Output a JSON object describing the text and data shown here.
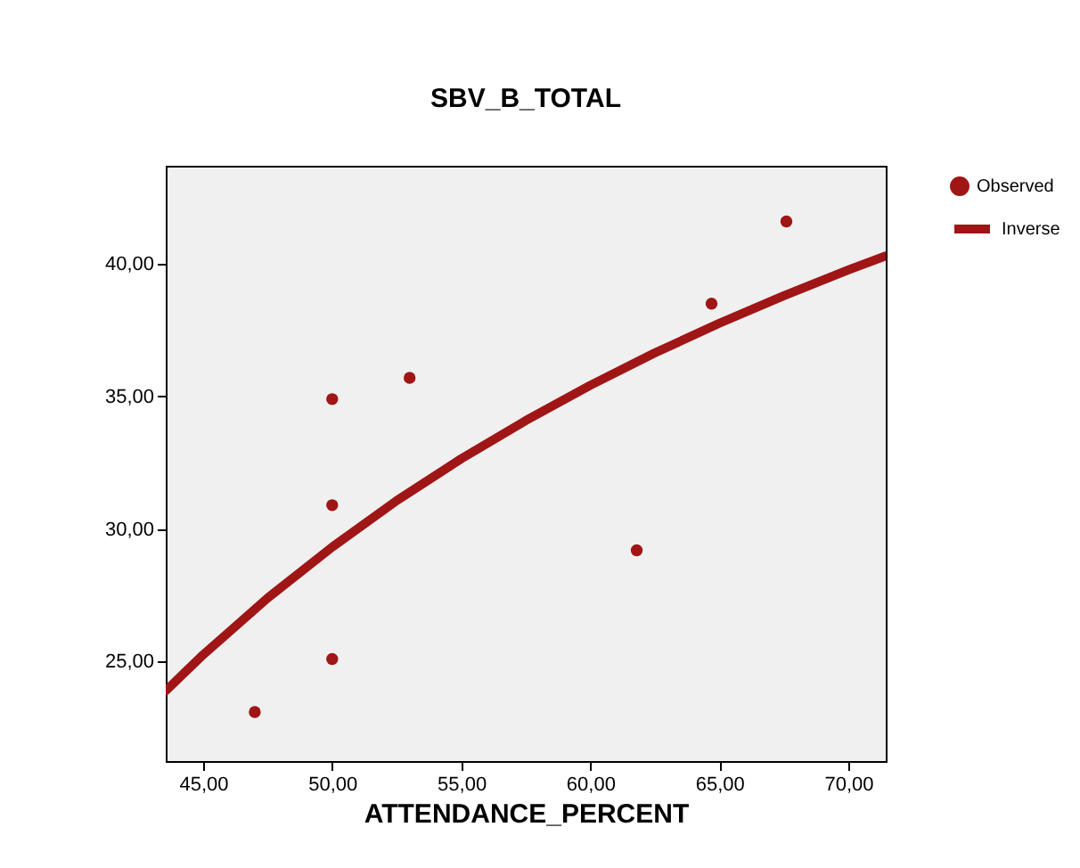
{
  "chart_data": {
    "type": "scatter",
    "title": "SBV_B_TOTAL",
    "xlabel": "ATTENDANCE_PERCENT",
    "xlim": [
      43.55,
      71.45
    ],
    "ylim": [
      21.25,
      43.7
    ],
    "xticks": [
      {
        "value": 45,
        "label": "45,00"
      },
      {
        "value": 50,
        "label": "50,00"
      },
      {
        "value": 55,
        "label": "55,00"
      },
      {
        "value": 60,
        "label": "60,00"
      },
      {
        "value": 65,
        "label": "65,00"
      },
      {
        "value": 70,
        "label": "70,00"
      }
    ],
    "yticks": [
      {
        "value": 25,
        "label": "25,00"
      },
      {
        "value": 30,
        "label": "30,00"
      },
      {
        "value": 35,
        "label": "35,00"
      },
      {
        "value": 40,
        "label": "40,00"
      }
    ],
    "grid": false,
    "legend": "top right",
    "series": [
      {
        "name": "Observed",
        "marker": "circle",
        "color": "#a01515",
        "x": [
          47.0,
          50.0,
          50.0,
          50.0,
          53.0,
          61.8,
          64.7,
          67.6
        ],
        "values": [
          23.1,
          25.1,
          30.9,
          34.9,
          35.7,
          29.2,
          38.5,
          41.6
        ]
      },
      {
        "name": "Inverse",
        "type": "line",
        "marker": "none",
        "line_style": "solid",
        "color": "#a01515",
        "x": [
          43.55,
          45,
          47.5,
          50,
          52.5,
          55,
          57.5,
          60,
          62.5,
          65,
          67.5,
          70,
          71.45
        ],
        "values": [
          23.9,
          25.26,
          27.4,
          29.32,
          31.07,
          32.65,
          34.09,
          35.42,
          36.64,
          37.76,
          38.8,
          39.77,
          40.3
        ]
      }
    ]
  }
}
